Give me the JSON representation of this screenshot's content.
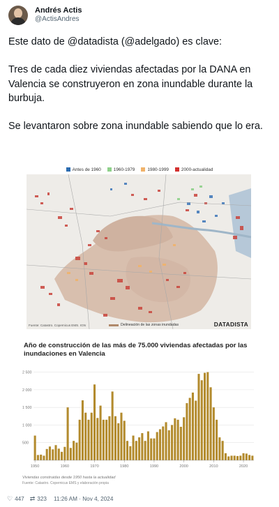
{
  "author": {
    "name": "Andrés Actis",
    "handle": "@ActisAndres"
  },
  "tweet": {
    "paragraphs": [
      "Este dato de @datadista (@adelgado) es clave:",
      "Tres de cada diez viviendas afectadas por la DANA en Valencia se construyeron en zona inundable durante la burbuja.",
      "Se levantaron sobre zona inundable sabiendo que lo era."
    ]
  },
  "map": {
    "legend": [
      {
        "label": "Antes de 1960",
        "color": "#2b6cb0"
      },
      {
        "label": "1960-1979",
        "color": "#8fd18a"
      },
      {
        "label": "1980-1999",
        "color": "#f0b36b"
      },
      {
        "label": "2000-actualidad",
        "color": "#d3312f"
      }
    ],
    "credit": "Fuente: Catastro. Copernicus EMS. IGN",
    "zone_label": "Delineación de las zonas inundadas",
    "brand": "DATADISTA"
  },
  "chart": {
    "title": "Año de construcción de las más de 75.000 viviendas afectadas por las inundaciones en Valencia",
    "note": "Viviendas construidas desde 1950 hasta la actualidad",
    "source": "Fuente: Catastro. Copernicus EMS y elaboración propia",
    "bar_color": "#b38b2e"
  },
  "chart_data": {
    "type": "bar",
    "x": [
      1950,
      1951,
      1952,
      1953,
      1954,
      1955,
      1956,
      1957,
      1958,
      1959,
      1960,
      1961,
      1962,
      1963,
      1964,
      1965,
      1966,
      1967,
      1968,
      1969,
      1970,
      1971,
      1972,
      1973,
      1974,
      1975,
      1976,
      1977,
      1978,
      1979,
      1980,
      1981,
      1982,
      1983,
      1984,
      1985,
      1986,
      1987,
      1988,
      1989,
      1990,
      1991,
      1992,
      1993,
      1994,
      1995,
      1996,
      1997,
      1998,
      1999,
      2000,
      2001,
      2002,
      2003,
      2004,
      2005,
      2006,
      2007,
      2008,
      2009,
      2010,
      2011,
      2012,
      2013,
      2014,
      2015,
      2016,
      2017,
      2018,
      2019,
      2020,
      2021,
      2022,
      2023
    ],
    "values": [
      700,
      150,
      160,
      130,
      320,
      390,
      310,
      430,
      330,
      240,
      380,
      1500,
      350,
      550,
      500,
      1150,
      1700,
      1350,
      1150,
      1350,
      2150,
      1200,
      1550,
      1150,
      1150,
      1250,
      1950,
      1250,
      1050,
      1350,
      1120,
      550,
      400,
      700,
      550,
      650,
      770,
      550,
      820,
      620,
      620,
      800,
      880,
      960,
      1080,
      850,
      1000,
      1190,
      1150,
      950,
      1220,
      1620,
      1770,
      1920,
      1690,
      2450,
      2270,
      2480,
      2500,
      2070,
      1500,
      1150,
      650,
      550,
      200,
      110,
      130,
      130,
      120,
      130,
      200,
      190,
      150,
      130
    ],
    "xticks": [
      1950,
      1960,
      1970,
      1980,
      1990,
      2000,
      2010,
      2020
    ],
    "yticks": [
      500,
      1000,
      1500,
      2000,
      2500
    ],
    "ytick_labels": [
      "500",
      "1 000",
      "1 500",
      "2 000",
      "2 500"
    ],
    "ylim": [
      0,
      2650
    ],
    "xlabel": "",
    "ylabel": "",
    "grid": true
  },
  "actions": {
    "likes": "447",
    "retweets": "323",
    "datetime": "11:26 AM · Nov 4, 2024"
  }
}
